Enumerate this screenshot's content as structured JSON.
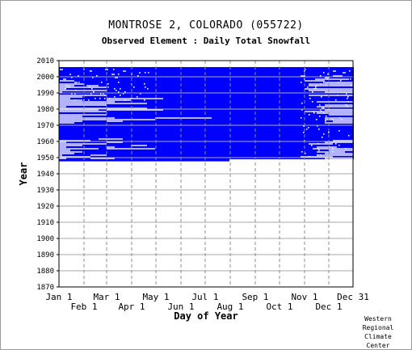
{
  "chart_data": {
    "type": "heatmap",
    "title": "MONTROSE 2, COLORADO   (055722)",
    "subtitle": "Observed Element : Daily Total Snowfall",
    "xlabel": "Day of Year",
    "ylabel": "Year",
    "xlim": [
      1,
      365
    ],
    "ylim": [
      1870,
      2010
    ],
    "x_ticks_upper": [
      "Jan 1",
      "Mar 1",
      "May 1",
      "Jul 1",
      "Sep 1",
      "Nov 1",
      "Dec 31"
    ],
    "x_ticks_lower": [
      "Feb 1",
      "Apr 1",
      "Jun 1",
      "Aug 1",
      "Oct 1",
      "Dec 1"
    ],
    "y_ticks": [
      1870,
      1880,
      1890,
      1900,
      1910,
      1920,
      1930,
      1940,
      1950,
      1960,
      1970,
      1980,
      1990,
      2000,
      2010
    ],
    "data_color": "#0000ff",
    "grid": true,
    "coverage": {
      "main_block": {
        "years": [
          1948,
          2005
        ],
        "days": [
          1,
          365
        ]
      },
      "early_start": {
        "years": [
          1948,
          1948
        ],
        "days": [
          1,
          212
        ]
      },
      "note": "white gaps = missing observations"
    },
    "missing_segments": [
      {
        "year": 2004,
        "days": [
          2,
          6
        ]
      },
      {
        "year": 2004,
        "days": [
          58,
          62
        ]
      },
      {
        "year": 2003,
        "days": [
          40,
          42
        ]
      },
      {
        "year": 2003,
        "days": [
          80,
          84
        ]
      },
      {
        "year": 2003,
        "days": [
          340,
          344
        ]
      },
      {
        "year": 2002,
        "days": [
          100,
          102
        ]
      },
      {
        "year": 2002,
        "days": [
          352,
          356
        ]
      },
      {
        "year": 2001,
        "days": [
          14,
          16
        ]
      },
      {
        "year": 2001,
        "days": [
          66,
          70
        ]
      },
      {
        "year": 2001,
        "days": [
          90,
          92
        ]
      },
      {
        "year": 2000,
        "days": [
          24,
          26
        ]
      },
      {
        "year": 2000,
        "days": [
          300,
          306
        ]
      },
      {
        "year": 2000,
        "days": [
          340,
          352
        ]
      },
      {
        "year": 1999,
        "days": [
          70,
          74
        ]
      },
      {
        "year": 1999,
        "days": [
          330,
          336
        ]
      },
      {
        "year": 1998,
        "days": [
          6,
          10
        ]
      },
      {
        "year": 1998,
        "days": [
          318,
          360
        ]
      },
      {
        "year": 1997,
        "days": [
          2,
          20
        ]
      },
      {
        "year": 1997,
        "days": [
          305,
          330
        ]
      },
      {
        "year": 1996,
        "days": [
          20,
          24
        ]
      },
      {
        "year": 1996,
        "days": [
          330,
          365
        ]
      },
      {
        "year": 1995,
        "days": [
          1,
          32
        ]
      },
      {
        "year": 1995,
        "days": [
          310,
          365
        ]
      },
      {
        "year": 1994,
        "days": [
          1,
          20
        ]
      },
      {
        "year": 1994,
        "days": [
          35,
          50
        ]
      },
      {
        "year": 1994,
        "days": [
          310,
          365
        ]
      },
      {
        "year": 1993,
        "days": [
          1,
          60
        ]
      },
      {
        "year": 1992,
        "days": [
          1,
          10
        ]
      },
      {
        "year": 1992,
        "days": [
          305,
          365
        ]
      },
      {
        "year": 1991,
        "days": [
          1,
          60
        ]
      },
      {
        "year": 1991,
        "days": [
          310,
          365
        ]
      },
      {
        "year": 1990,
        "days": [
          1,
          5
        ]
      },
      {
        "year": 1990,
        "days": [
          330,
          365
        ]
      },
      {
        "year": 1988,
        "days": [
          1,
          60
        ]
      },
      {
        "year": 1988,
        "days": [
          310,
          365
        ]
      },
      {
        "year": 1987,
        "days": [
          1,
          30
        ]
      },
      {
        "year": 1986,
        "days": [
          1,
          15
        ]
      },
      {
        "year": 1986,
        "days": [
          60,
          130
        ]
      },
      {
        "year": 1985,
        "days": [
          1,
          30
        ]
      },
      {
        "year": 1985,
        "days": [
          60,
          90
        ]
      },
      {
        "year": 1984,
        "days": [
          1,
          70
        ]
      },
      {
        "year": 1984,
        "days": [
          320,
          365
        ]
      },
      {
        "year": 1983,
        "days": [
          1,
          110
        ]
      },
      {
        "year": 1982,
        "days": [
          1,
          60
        ]
      },
      {
        "year": 1982,
        "days": [
          330,
          365
        ]
      },
      {
        "year": 1981,
        "days": [
          1,
          10
        ]
      },
      {
        "year": 1981,
        "days": [
          320,
          365
        ]
      },
      {
        "year": 1980,
        "days": [
          1,
          110
        ]
      },
      {
        "year": 1979,
        "days": [
          1,
          50
        ]
      },
      {
        "year": 1979,
        "days": [
          60,
          130
        ]
      },
      {
        "year": 1979,
        "days": [
          330,
          365
        ]
      },
      {
        "year": 1978,
        "days": [
          1,
          60
        ]
      },
      {
        "year": 1978,
        "days": [
          305,
          365
        ]
      },
      {
        "year": 1977,
        "days": [
          320,
          365
        ]
      },
      {
        "year": 1976,
        "days": [
          1,
          60
        ]
      },
      {
        "year": 1976,
        "days": [
          335,
          365
        ]
      },
      {
        "year": 1975,
        "days": [
          1,
          30
        ]
      },
      {
        "year": 1974,
        "days": [
          1,
          70
        ]
      },
      {
        "year": 1974,
        "days": [
          120,
          190
        ]
      },
      {
        "year": 1974,
        "days": [
          330,
          365
        ]
      },
      {
        "year": 1973,
        "days": [
          1,
          120
        ]
      },
      {
        "year": 1973,
        "days": [
          330,
          365
        ]
      },
      {
        "year": 1972,
        "days": [
          1,
          30
        ]
      },
      {
        "year": 1972,
        "days": [
          60,
          80
        ]
      },
      {
        "year": 1972,
        "days": [
          340,
          365
        ]
      },
      {
        "year": 1971,
        "days": [
          1,
          20
        ]
      },
      {
        "year": 1971,
        "days": [
          330,
          365
        ]
      },
      {
        "year": 1961,
        "days": [
          50,
          80
        ]
      },
      {
        "year": 1960,
        "days": [
          1,
          40
        ]
      },
      {
        "year": 1960,
        "days": [
          340,
          365
        ]
      },
      {
        "year": 1959,
        "days": [
          1,
          10
        ]
      },
      {
        "year": 1959,
        "days": [
          60,
          80
        ]
      },
      {
        "year": 1959,
        "days": [
          330,
          365
        ]
      },
      {
        "year": 1958,
        "days": [
          1,
          60
        ]
      },
      {
        "year": 1958,
        "days": [
          310,
          340
        ]
      },
      {
        "year": 1957,
        "days": [
          1,
          30
        ]
      },
      {
        "year": 1957,
        "days": [
          90,
          110
        ]
      },
      {
        "year": 1956,
        "days": [
          1,
          10
        ]
      },
      {
        "year": 1956,
        "days": [
          60,
          70
        ]
      },
      {
        "year": 1956,
        "days": [
          320,
          345
        ]
      },
      {
        "year": 1955,
        "days": [
          1,
          50
        ]
      },
      {
        "year": 1955,
        "days": [
          60,
          120
        ]
      },
      {
        "year": 1955,
        "days": [
          315,
          365
        ]
      },
      {
        "year": 1954,
        "days": [
          1,
          15
        ]
      },
      {
        "year": 1954,
        "days": [
          335,
          365
        ]
      },
      {
        "year": 1953,
        "days": [
          1,
          30
        ]
      },
      {
        "year": 1953,
        "days": [
          320,
          355
        ]
      },
      {
        "year": 1952,
        "days": [
          1,
          20
        ]
      },
      {
        "year": 1952,
        "days": [
          330,
          365
        ]
      },
      {
        "year": 1951,
        "days": [
          1,
          5
        ]
      },
      {
        "year": 1951,
        "days": [
          40,
          60
        ]
      },
      {
        "year": 1951,
        "days": [
          320,
          365
        ]
      },
      {
        "year": 1950,
        "days": [
          1,
          40
        ]
      },
      {
        "year": 1950,
        "days": [
          300,
          340
        ]
      },
      {
        "year": 1949,
        "days": [
          1,
          10
        ]
      },
      {
        "year": 1949,
        "days": [
          40,
          70
        ]
      },
      {
        "year": 1949,
        "days": [
          330,
          365
        ]
      }
    ]
  },
  "footer": {
    "credit_lines": [
      "Western",
      "Regional",
      "Climate",
      "Center"
    ]
  }
}
